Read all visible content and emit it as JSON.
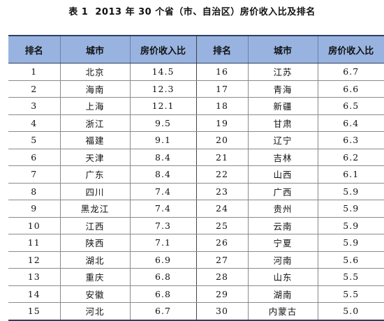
{
  "caption": {
    "label": "表 1",
    "title": "2013 年 30 个省（市、自治区）房价收入比及排名"
  },
  "headers": [
    "排名",
    "城市",
    "房价收入比",
    "排名",
    "城市",
    "房价收入比"
  ],
  "rows": [
    {
      "rank_a": "1",
      "city_a": "北京",
      "ratio_a": "14.5",
      "rank_b": "16",
      "city_b": "江苏",
      "ratio_b": "6.7"
    },
    {
      "rank_a": "2",
      "city_a": "海南",
      "ratio_a": "12.3",
      "rank_b": "17",
      "city_b": "青海",
      "ratio_b": "6.6"
    },
    {
      "rank_a": "3",
      "city_a": "上海",
      "ratio_a": "12.1",
      "rank_b": "18",
      "city_b": "新疆",
      "ratio_b": "6.5"
    },
    {
      "rank_a": "4",
      "city_a": "浙江",
      "ratio_a": "9.5",
      "rank_b": "19",
      "city_b": "甘肃",
      "ratio_b": "6.4"
    },
    {
      "rank_a": "5",
      "city_a": "福建",
      "ratio_a": "9.1",
      "rank_b": "20",
      "city_b": "辽宁",
      "ratio_b": "6.3"
    },
    {
      "rank_a": "6",
      "city_a": "天津",
      "ratio_a": "8.4",
      "rank_b": "21",
      "city_b": "吉林",
      "ratio_b": "6.2"
    },
    {
      "rank_a": "7",
      "city_a": "广东",
      "ratio_a": "8.4",
      "rank_b": "22",
      "city_b": "山西",
      "ratio_b": "6.1"
    },
    {
      "rank_a": "8",
      "city_a": "四川",
      "ratio_a": "7.4",
      "rank_b": "23",
      "city_b": "广西",
      "ratio_b": "5.9"
    },
    {
      "rank_a": "9",
      "city_a": "黑龙江",
      "ratio_a": "7.4",
      "rank_b": "24",
      "city_b": "贵州",
      "ratio_b": "5.9"
    },
    {
      "rank_a": "10",
      "city_a": "江西",
      "ratio_a": "7.3",
      "rank_b": "25",
      "city_b": "云南",
      "ratio_b": "5.9"
    },
    {
      "rank_a": "11",
      "city_a": "陕西",
      "ratio_a": "7.1",
      "rank_b": "26",
      "city_b": "宁夏",
      "ratio_b": "5.9"
    },
    {
      "rank_a": "12",
      "city_a": "湖北",
      "ratio_a": "6.9",
      "rank_b": "27",
      "city_b": "河南",
      "ratio_b": "5.6"
    },
    {
      "rank_a": "13",
      "city_a": "重庆",
      "ratio_a": "6.8",
      "rank_b": "28",
      "city_b": "山东",
      "ratio_b": "5.5"
    },
    {
      "rank_a": "14",
      "city_a": "安徽",
      "ratio_a": "6.8",
      "rank_b": "29",
      "city_b": "湖南",
      "ratio_b": "5.5"
    },
    {
      "rank_a": "15",
      "city_a": "河北",
      "ratio_a": "6.7",
      "rank_b": "30",
      "city_b": "内蒙古",
      "ratio_b": "5.0"
    }
  ],
  "colors": {
    "header_bg": "#98b3e0",
    "rule": "#2f3f5f"
  }
}
